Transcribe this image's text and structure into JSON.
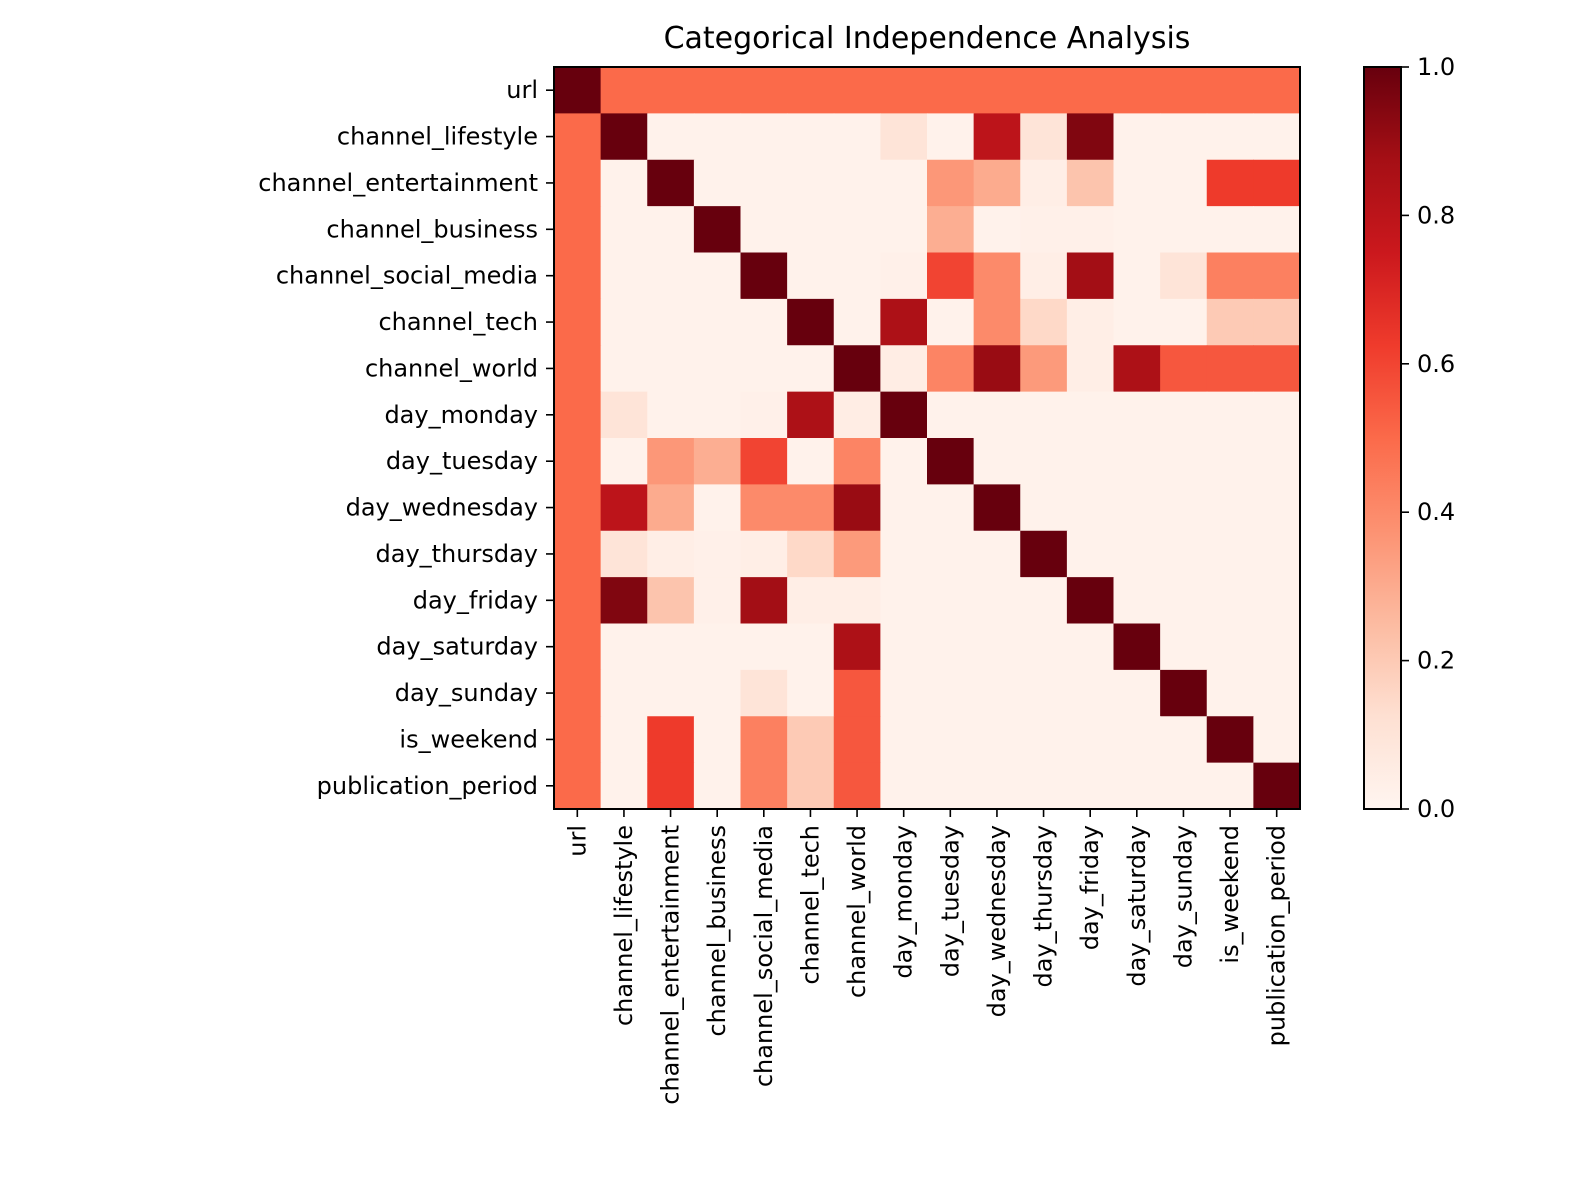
{
  "chart_data": {
    "type": "heatmap",
    "title": "Categorical Independence Analysis",
    "xlabel": "",
    "ylabel": "",
    "colormap": "Reds",
    "vmin": 0.0,
    "vmax": 1.0,
    "row_labels": [
      "url",
      "channel_lifestyle",
      "channel_entertainment",
      "channel_business",
      "channel_social_media",
      "channel_tech",
      "channel_world",
      "day_monday",
      "day_tuesday",
      "day_wednesday",
      "day_thursday",
      "day_friday",
      "day_saturday",
      "day_sunday",
      "is_weekend",
      "publication_period"
    ],
    "col_labels": [
      "url",
      "channel_lifestyle",
      "channel_entertainment",
      "channel_business",
      "channel_social_media",
      "channel_tech",
      "channel_world",
      "day_monday",
      "day_tuesday",
      "day_wednesday",
      "day_thursday",
      "day_friday",
      "day_saturday",
      "day_sunday",
      "is_weekend",
      "publication_period"
    ],
    "values": [
      [
        1.0,
        0.5,
        0.5,
        0.5,
        0.5,
        0.5,
        0.5,
        0.5,
        0.5,
        0.5,
        0.5,
        0.5,
        0.5,
        0.5,
        0.5,
        0.5
      ],
      [
        0.5,
        1.0,
        0.02,
        0.02,
        0.02,
        0.02,
        0.02,
        0.1,
        0.02,
        0.8,
        0.1,
        0.95,
        0.02,
        0.02,
        0.02,
        0.02
      ],
      [
        0.5,
        0.02,
        1.0,
        0.02,
        0.02,
        0.02,
        0.02,
        0.02,
        0.36,
        0.3,
        0.04,
        0.22,
        0.02,
        0.02,
        0.63,
        0.63
      ],
      [
        0.5,
        0.02,
        0.02,
        1.0,
        0.02,
        0.02,
        0.02,
        0.02,
        0.29,
        0.02,
        0.03,
        0.03,
        0.02,
        0.02,
        0.02,
        0.02
      ],
      [
        0.5,
        0.02,
        0.02,
        0.02,
        1.0,
        0.02,
        0.02,
        0.03,
        0.6,
        0.4,
        0.04,
        0.88,
        0.02,
        0.1,
        0.43,
        0.43
      ],
      [
        0.5,
        0.02,
        0.02,
        0.02,
        0.02,
        1.0,
        0.02,
        0.85,
        0.02,
        0.4,
        0.15,
        0.04,
        0.02,
        0.02,
        0.2,
        0.2
      ],
      [
        0.5,
        0.02,
        0.02,
        0.02,
        0.02,
        0.02,
        1.0,
        0.05,
        0.42,
        0.9,
        0.35,
        0.04,
        0.85,
        0.55,
        0.55,
        0.55
      ],
      [
        0.5,
        0.1,
        0.02,
        0.02,
        0.03,
        0.85,
        0.05,
        1.0,
        0.02,
        0.02,
        0.02,
        0.02,
        0.02,
        0.02,
        0.02,
        0.02
      ],
      [
        0.5,
        0.02,
        0.36,
        0.29,
        0.6,
        0.02,
        0.42,
        0.02,
        1.0,
        0.02,
        0.02,
        0.02,
        0.02,
        0.02,
        0.02,
        0.02
      ],
      [
        0.5,
        0.8,
        0.3,
        0.02,
        0.4,
        0.4,
        0.9,
        0.02,
        0.02,
        1.0,
        0.02,
        0.02,
        0.02,
        0.02,
        0.02,
        0.02
      ],
      [
        0.5,
        0.1,
        0.04,
        0.03,
        0.04,
        0.15,
        0.35,
        0.02,
        0.02,
        0.02,
        1.0,
        0.02,
        0.02,
        0.02,
        0.02,
        0.02
      ],
      [
        0.5,
        0.95,
        0.22,
        0.03,
        0.88,
        0.04,
        0.04,
        0.02,
        0.02,
        0.02,
        0.02,
        1.0,
        0.02,
        0.02,
        0.02,
        0.02
      ],
      [
        0.5,
        0.02,
        0.02,
        0.02,
        0.02,
        0.02,
        0.85,
        0.02,
        0.02,
        0.02,
        0.02,
        0.02,
        1.0,
        0.02,
        0.02,
        0.02
      ],
      [
        0.5,
        0.02,
        0.02,
        0.02,
        0.1,
        0.02,
        0.55,
        0.02,
        0.02,
        0.02,
        0.02,
        0.02,
        0.02,
        1.0,
        0.02,
        0.02
      ],
      [
        0.5,
        0.02,
        0.63,
        0.02,
        0.43,
        0.2,
        0.55,
        0.02,
        0.02,
        0.02,
        0.02,
        0.02,
        0.02,
        0.02,
        1.0,
        0.02
      ],
      [
        0.5,
        0.02,
        0.63,
        0.02,
        0.43,
        0.2,
        0.55,
        0.02,
        0.02,
        0.02,
        0.02,
        0.02,
        0.02,
        0.02,
        0.02,
        1.0
      ]
    ],
    "colorbar": {
      "ticks": [
        0.0,
        0.2,
        0.4,
        0.6,
        0.8,
        1.0
      ],
      "tick_labels": [
        "0.0",
        "0.2",
        "0.4",
        "0.6",
        "0.8",
        "1.0"
      ]
    }
  }
}
